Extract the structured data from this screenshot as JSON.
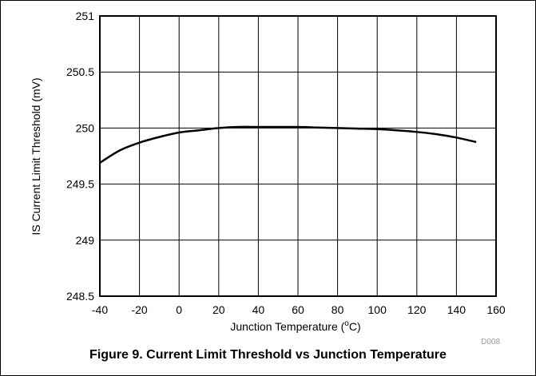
{
  "chart_data": {
    "type": "line",
    "title": "",
    "xlabel": "Junction Temperature (",
    "xlabel_sup": "o",
    "xlabel_tail": "C)",
    "ylabel": "IS Current Limit Threshold (mV)",
    "xlim": [
      -40,
      160
    ],
    "ylim": [
      248.5,
      251
    ],
    "xticks": [
      -40,
      -20,
      0,
      20,
      40,
      60,
      80,
      100,
      120,
      140,
      160
    ],
    "yticks": [
      248.5,
      249,
      249.5,
      250,
      250.5,
      251
    ],
    "ytick_labels": [
      "248.5",
      "249",
      "249.5",
      "250",
      "250.5",
      "251"
    ],
    "grid": true,
    "series": [
      {
        "x": [
          -40,
          -30,
          -20,
          -10,
          0,
          10,
          20,
          30,
          40,
          50,
          60,
          70,
          80,
          90,
          100,
          110,
          120,
          130,
          140,
          150
        ],
        "y": [
          249.69,
          249.8,
          249.87,
          249.92,
          249.96,
          249.98,
          250.0,
          250.01,
          250.01,
          250.01,
          250.01,
          250.005,
          250.0,
          249.995,
          249.99,
          249.98,
          249.965,
          249.945,
          249.915,
          249.875
        ],
        "color": "#000000"
      }
    ],
    "figure_code": "D008"
  },
  "caption": "Figure 9. Current Limit Threshold vs Junction Temperature"
}
